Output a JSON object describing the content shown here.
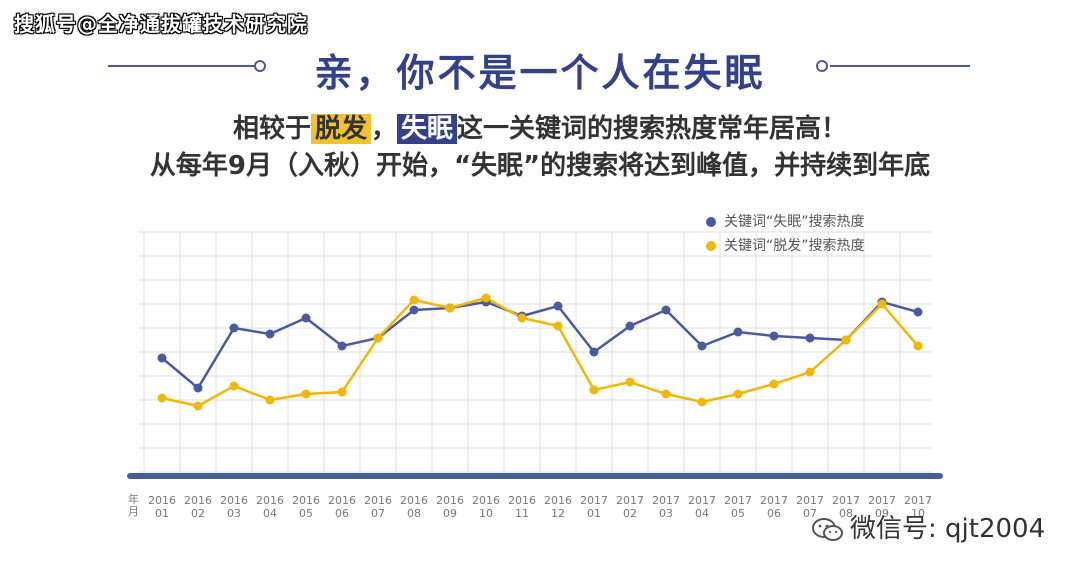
{
  "watermark": "搜狐号@全净通拔罐技术研究院",
  "title": "亲，你不是一个人在失眠",
  "subtitle": {
    "part1": "相较于",
    "hl_hair": "脱发",
    "part2": "，",
    "hl_insomnia": "失眠",
    "part3": "这一关键词的搜索热度常年居高！"
  },
  "subtitle2": "从每年9月（入秋）开始，“失眠”的搜索将达到峰值，并持续到年底",
  "wechat": {
    "icon": "wechat-icon",
    "text": "微信号: qjt2004"
  },
  "colors": {
    "blue": "#4a5aa0",
    "yellow": "#f2b705",
    "title": "#33418a"
  },
  "chart_data": {
    "type": "line",
    "axis_prefix": [
      "年",
      "月"
    ],
    "categories": [
      [
        "2016",
        "01"
      ],
      [
        "2016",
        "02"
      ],
      [
        "2016",
        "03"
      ],
      [
        "2016",
        "04"
      ],
      [
        "2016",
        "05"
      ],
      [
        "2016",
        "06"
      ],
      [
        "2016",
        "07"
      ],
      [
        "2016",
        "08"
      ],
      [
        "2016",
        "09"
      ],
      [
        "2016",
        "10"
      ],
      [
        "2016",
        "11"
      ],
      [
        "2016",
        "12"
      ],
      [
        "2017",
        "01"
      ],
      [
        "2017",
        "02"
      ],
      [
        "2017",
        "03"
      ],
      [
        "2017",
        "04"
      ],
      [
        "2017",
        "05"
      ],
      [
        "2017",
        "06"
      ],
      [
        "2017",
        "07"
      ],
      [
        "2017",
        "08"
      ],
      [
        "2017",
        "09"
      ],
      [
        "2017",
        "10"
      ]
    ],
    "series": [
      {
        "name": "关键词“失眠”搜索热度",
        "color": "#4a5aa0",
        "values": [
          5.7,
          4.2,
          7.2,
          6.9,
          7.7,
          6.3,
          6.7,
          8.1,
          8.2,
          8.5,
          7.8,
          8.3,
          6.0,
          7.3,
          8.1,
          6.3,
          7.0,
          6.8,
          6.7,
          6.6,
          8.5,
          8.0
        ]
      },
      {
        "name": "关键词“脱发”搜索热度",
        "color": "#f2b705",
        "values": [
          3.7,
          3.3,
          4.3,
          3.6,
          3.9,
          4.0,
          6.7,
          8.6,
          8.2,
          8.7,
          7.7,
          7.3,
          4.1,
          4.5,
          3.9,
          3.5,
          3.9,
          4.4,
          5.0,
          6.6,
          8.4,
          6.3
        ]
      }
    ],
    "ylim": [
      0,
      12
    ],
    "grid": true,
    "legend_position": "top-right"
  }
}
